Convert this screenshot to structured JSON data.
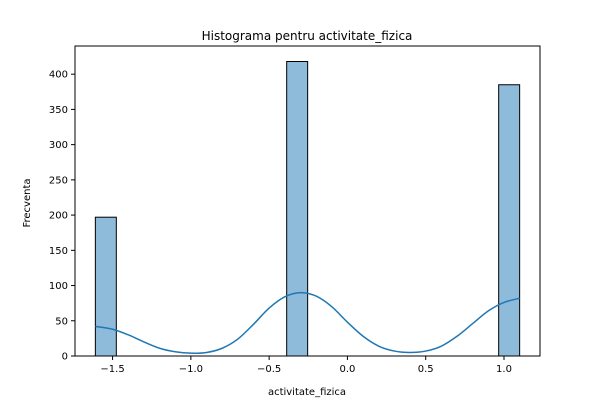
{
  "chart_data": {
    "type": "bar",
    "title": "Histograma pentru activitate_fizica",
    "xlabel": "activitate_fizica",
    "ylabel": "Frecventa",
    "xlim": [
      -1.74,
      1.23
    ],
    "ylim": [
      0,
      440
    ],
    "xticks": [
      -1.5,
      -1.0,
      -0.5,
      0.0,
      0.5,
      1.0
    ],
    "xtick_labels": [
      "−1.5",
      "−1.0",
      "−0.5",
      "0.0",
      "0.5",
      "1.0"
    ],
    "yticks": [
      0,
      50,
      100,
      150,
      200,
      250,
      300,
      350,
      400
    ],
    "ytick_labels": [
      "0",
      "50",
      "100",
      "150",
      "200",
      "250",
      "300",
      "350",
      "400"
    ],
    "grid": false,
    "bar_color": "#8fbbda",
    "bar_edge_color": "#000000",
    "bins": [
      {
        "x0": -1.61,
        "x1": -1.476,
        "count": 197
      },
      {
        "x0": -0.388,
        "x1": -0.254,
        "count": 418
      },
      {
        "x0": 0.966,
        "x1": 1.1,
        "count": 385
      }
    ],
    "kde": {
      "color": "#1f77b4",
      "points": [
        [
          -1.61,
          42
        ],
        [
          -1.5,
          38
        ],
        [
          -1.4,
          30
        ],
        [
          -1.3,
          20
        ],
        [
          -1.2,
          11
        ],
        [
          -1.1,
          6
        ],
        [
          -1.0,
          4
        ],
        [
          -0.9,
          5
        ],
        [
          -0.8,
          11
        ],
        [
          -0.7,
          24
        ],
        [
          -0.6,
          45
        ],
        [
          -0.5,
          68
        ],
        [
          -0.4,
          84
        ],
        [
          -0.3,
          90
        ],
        [
          -0.2,
          85
        ],
        [
          -0.1,
          70
        ],
        [
          0.0,
          48
        ],
        [
          0.1,
          28
        ],
        [
          0.2,
          14
        ],
        [
          0.3,
          7
        ],
        [
          0.4,
          5
        ],
        [
          0.5,
          7
        ],
        [
          0.6,
          14
        ],
        [
          0.7,
          28
        ],
        [
          0.8,
          46
        ],
        [
          0.9,
          64
        ],
        [
          1.0,
          76
        ],
        [
          1.1,
          82
        ]
      ]
    }
  }
}
